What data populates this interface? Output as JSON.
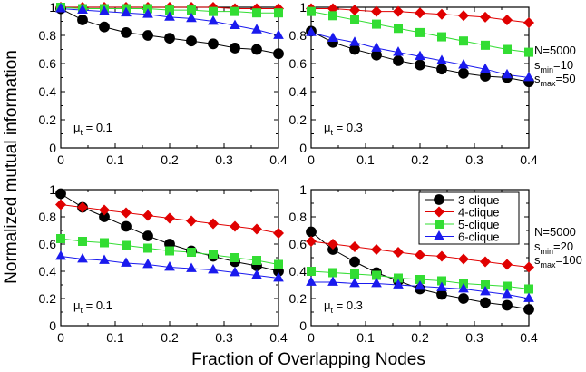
{
  "figure": {
    "ylabel": "Normalized mutual information",
    "xlabel": "Fraction of Overlapping Nodes",
    "annotations_top": {
      "n": "N=5000",
      "smin": "10",
      "smax": "50"
    },
    "annotations_bottom": {
      "n": "N=5000",
      "smin": "20",
      "smax": "100"
    },
    "legend": [
      "3-clique",
      "4-clique",
      "5-clique",
      "6-clique"
    ],
    "series_colors": {
      "3-clique": "#000000",
      "4-clique": "#e00000",
      "5-clique": "#33dd33",
      "6-clique": "#1a1aee"
    }
  },
  "chart_data": [
    {
      "type": "line",
      "mu_label": "0.1",
      "x": [
        0,
        0.04,
        0.08,
        0.12,
        0.16,
        0.2,
        0.24,
        0.28,
        0.32,
        0.36,
        0.4
      ],
      "xlim": [
        0,
        0.4
      ],
      "ylim": [
        0,
        1
      ],
      "xticks": [
        "0",
        "0.1",
        "0.2",
        "0.3",
        "0.4"
      ],
      "yticks": [
        "0",
        "0.2",
        "0.4",
        "0.6",
        "0.8",
        "1"
      ],
      "series": [
        {
          "name": "3-clique",
          "values": [
            0.99,
            0.91,
            0.86,
            0.82,
            0.8,
            0.78,
            0.76,
            0.74,
            0.71,
            0.7,
            0.67
          ]
        },
        {
          "name": "4-clique",
          "values": [
            1.0,
            1.0,
            1.0,
            1.0,
            1.0,
            1.0,
            1.0,
            1.0,
            0.99,
            0.99,
            0.99
          ]
        },
        {
          "name": "5-clique",
          "values": [
            1.0,
            0.99,
            0.99,
            0.99,
            0.99,
            0.98,
            0.98,
            0.97,
            0.97,
            0.96,
            0.96
          ]
        },
        {
          "name": "6-clique",
          "values": [
            0.99,
            0.98,
            0.97,
            0.96,
            0.95,
            0.93,
            0.92,
            0.9,
            0.87,
            0.84,
            0.8
          ]
        }
      ]
    },
    {
      "type": "line",
      "mu_label": "0.3",
      "x": [
        0,
        0.04,
        0.08,
        0.12,
        0.16,
        0.2,
        0.24,
        0.28,
        0.32,
        0.36,
        0.4
      ],
      "xlim": [
        0,
        0.4
      ],
      "ylim": [
        0,
        1
      ],
      "xticks": [
        "0",
        "0.1",
        "0.2",
        "0.3",
        "0.4"
      ],
      "yticks": [
        "0",
        "0.2",
        "0.4",
        "0.6",
        "0.8",
        "1"
      ],
      "series": [
        {
          "name": "3-clique",
          "values": [
            0.83,
            0.75,
            0.7,
            0.66,
            0.62,
            0.59,
            0.56,
            0.53,
            0.51,
            0.5,
            0.47
          ]
        },
        {
          "name": "4-clique",
          "values": [
            0.99,
            0.99,
            0.98,
            0.97,
            0.97,
            0.96,
            0.95,
            0.94,
            0.93,
            0.91,
            0.89
          ]
        },
        {
          "name": "5-clique",
          "values": [
            0.97,
            0.94,
            0.91,
            0.88,
            0.85,
            0.82,
            0.79,
            0.76,
            0.73,
            0.7,
            0.68
          ]
        },
        {
          "name": "6-clique",
          "values": [
            0.82,
            0.78,
            0.75,
            0.71,
            0.68,
            0.65,
            0.62,
            0.59,
            0.56,
            0.52,
            0.5
          ]
        }
      ]
    },
    {
      "type": "line",
      "mu_label": "0.1",
      "x": [
        0,
        0.04,
        0.08,
        0.12,
        0.16,
        0.2,
        0.24,
        0.28,
        0.32,
        0.36,
        0.4
      ],
      "xlim": [
        0,
        0.4
      ],
      "ylim": [
        0,
        1
      ],
      "xticks": [
        "0",
        "0.1",
        "0.2",
        "0.3",
        "0.4"
      ],
      "yticks": [
        "0",
        "0.2",
        "0.4",
        "0.6",
        "0.8",
        "1"
      ],
      "series": [
        {
          "name": "3-clique",
          "values": [
            0.97,
            0.87,
            0.8,
            0.73,
            0.66,
            0.6,
            0.55,
            0.51,
            0.47,
            0.44,
            0.4
          ]
        },
        {
          "name": "4-clique",
          "values": [
            0.89,
            0.87,
            0.85,
            0.83,
            0.81,
            0.79,
            0.77,
            0.75,
            0.73,
            0.71,
            0.68
          ]
        },
        {
          "name": "5-clique",
          "values": [
            0.64,
            0.62,
            0.61,
            0.59,
            0.57,
            0.55,
            0.54,
            0.52,
            0.5,
            0.48,
            0.45
          ]
        },
        {
          "name": "6-clique",
          "values": [
            0.51,
            0.49,
            0.48,
            0.46,
            0.45,
            0.43,
            0.42,
            0.41,
            0.39,
            0.37,
            0.35
          ]
        }
      ]
    },
    {
      "type": "line",
      "mu_label": "0.3",
      "x": [
        0,
        0.04,
        0.08,
        0.12,
        0.16,
        0.2,
        0.24,
        0.28,
        0.32,
        0.36,
        0.4
      ],
      "xlim": [
        0,
        0.4
      ],
      "ylim": [
        0,
        1
      ],
      "xticks": [
        "0",
        "0.1",
        "0.2",
        "0.3",
        "0.4"
      ],
      "yticks": [
        "0",
        "0.2",
        "0.4",
        "0.6",
        "0.8",
        "1"
      ],
      "series": [
        {
          "name": "3-clique",
          "values": [
            0.69,
            0.56,
            0.47,
            0.39,
            0.33,
            0.27,
            0.23,
            0.2,
            0.17,
            0.15,
            0.12
          ]
        },
        {
          "name": "4-clique",
          "values": [
            0.62,
            0.6,
            0.58,
            0.56,
            0.54,
            0.52,
            0.51,
            0.49,
            0.47,
            0.45,
            0.43
          ]
        },
        {
          "name": "5-clique",
          "values": [
            0.4,
            0.39,
            0.38,
            0.37,
            0.35,
            0.34,
            0.33,
            0.31,
            0.3,
            0.29,
            0.27
          ]
        },
        {
          "name": "6-clique",
          "values": [
            0.32,
            0.32,
            0.31,
            0.31,
            0.3,
            0.29,
            0.28,
            0.27,
            0.25,
            0.23,
            0.2
          ]
        }
      ]
    }
  ]
}
